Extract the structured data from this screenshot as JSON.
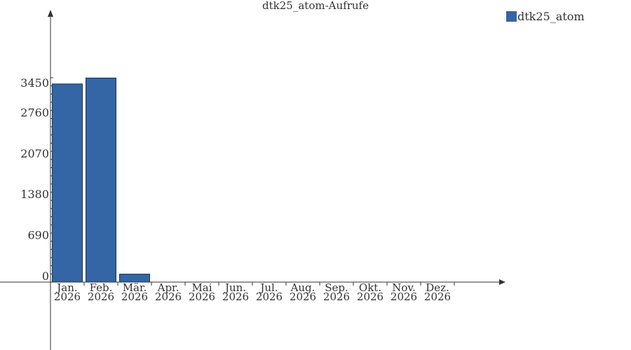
{
  "chart_data": {
    "type": "bar",
    "title": "dtk25_atom-Aufrufe",
    "xlabel": "",
    "ylabel": "",
    "categories": [
      [
        "Jan.",
        "2026"
      ],
      [
        "Feb.",
        "2026"
      ],
      [
        "Mär.",
        "2026"
      ],
      [
        "Apr.",
        "2026"
      ],
      [
        "Mai",
        "2026"
      ],
      [
        "Jun.",
        "2026"
      ],
      [
        "Jul.",
        "2026"
      ],
      [
        "Aug.",
        "2026"
      ],
      [
        "Sep.",
        "2026"
      ],
      [
        "Okt.",
        "2026"
      ],
      [
        "Nov.",
        "2026"
      ],
      [
        "Dez.",
        "2026"
      ]
    ],
    "series": [
      {
        "name": "dtk25_atom",
        "color": "#3465a4",
        "values": [
          3345,
          3445,
          135,
          0,
          0,
          0,
          0,
          0,
          0,
          0,
          0,
          0
        ]
      }
    ],
    "yticks": [
      "0",
      "690",
      "1380",
      "2070",
      "2760",
      "3450"
    ],
    "ylim": [
      0,
      3450
    ],
    "grid": false,
    "legend": "top-right"
  }
}
